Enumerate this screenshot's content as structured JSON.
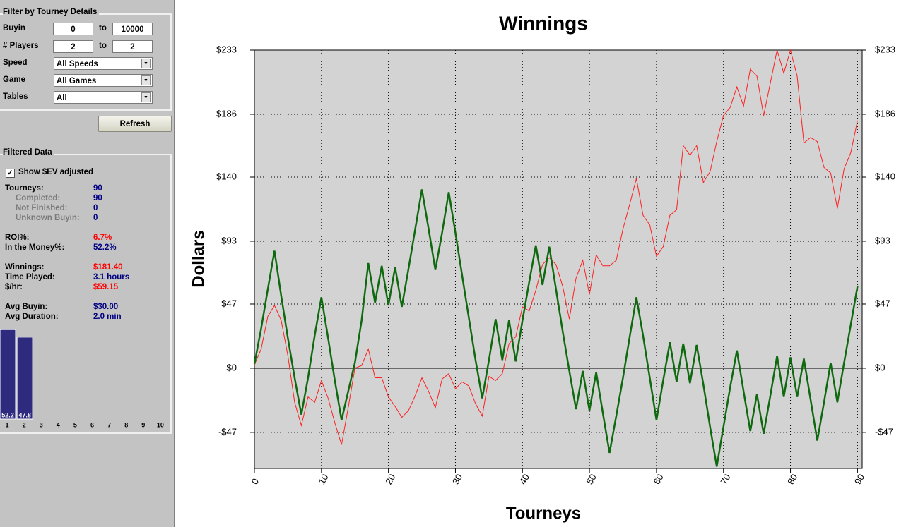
{
  "panel": {
    "filter_title": "Filter by Tourney Details",
    "range_filters": [
      {
        "label": "Buyin",
        "min": "0",
        "sep": "to",
        "max": "10000"
      },
      {
        "label": "# Players",
        "min": "2",
        "sep": "to",
        "max": "2"
      }
    ],
    "dropdown_filters": [
      {
        "label": "Speed",
        "value": "All Speeds"
      },
      {
        "label": "Game",
        "value": "All Games"
      },
      {
        "label": "Tables",
        "value": "All"
      }
    ],
    "refresh": "Refresh",
    "filtered_title": "Filtered Data",
    "checkbox": "Show $EV adjusted",
    "stat_groups": [
      [
        {
          "label": "Tourneys:",
          "value": "90",
          "items": [
            {
              "label": "Completed:",
              "value": "90"
            },
            {
              "label": "Not Finished:",
              "value": "0"
            },
            {
              "label": "Unknown Buyin:",
              "value": "0"
            }
          ]
        }
      ],
      [
        {
          "label": "ROI%:",
          "value": "6.7%",
          "color": "#ff0000"
        },
        {
          "label": "In the Money%:",
          "value": "52.2%"
        }
      ],
      [
        {
          "label": "Winnings:",
          "value": "$181.40",
          "color": "#ff0000"
        },
        {
          "label": "Time Played:",
          "value": "3.1 hours"
        },
        {
          "label": "$/hr:",
          "value": "$59.15",
          "color": "#ff0000"
        }
      ],
      [
        {
          "label": "Avg Buyin:",
          "value": "$30.00"
        },
        {
          "label": "Avg Duration:",
          "value": "2.0 min"
        }
      ]
    ],
    "distribution": {
      "type": "bar",
      "categories": [
        "1",
        "2",
        "3",
        "4",
        "5",
        "6",
        "7",
        "8",
        "9",
        "10"
      ],
      "values": [
        52.2,
        47.8,
        null,
        null,
        null,
        null,
        null,
        null,
        null,
        null
      ],
      "color": "#2e2b7e"
    }
  },
  "chart_data": {
    "type": "line",
    "title": "Winnings",
    "xlabel": "Tourneys",
    "ylabel": "Dollars",
    "x": [
      0,
      1,
      2,
      3,
      4,
      5,
      6,
      7,
      8,
      9,
      10,
      11,
      12,
      13,
      14,
      15,
      16,
      17,
      18,
      19,
      20,
      21,
      22,
      23,
      24,
      25,
      26,
      27,
      28,
      29,
      30,
      31,
      32,
      33,
      34,
      35,
      36,
      37,
      38,
      39,
      40,
      41,
      42,
      43,
      44,
      45,
      46,
      47,
      48,
      49,
      50,
      51,
      52,
      53,
      54,
      55,
      56,
      57,
      58,
      59,
      60,
      61,
      62,
      63,
      64,
      65,
      66,
      67,
      68,
      69,
      70,
      71,
      72,
      73,
      74,
      75,
      76,
      77,
      78,
      79,
      80,
      81,
      82,
      83,
      84,
      85,
      86,
      87,
      88,
      89,
      90
    ],
    "series": [
      {
        "color": "#ff2020",
        "width": 1,
        "values": [
          2.5,
          14,
          38,
          46,
          35,
          9,
          -25,
          -42,
          -21,
          -25,
          -9,
          -22,
          -40,
          -56,
          -29,
          0,
          2,
          14,
          -7,
          -7,
          -21,
          -28,
          -36,
          -31,
          -20,
          -7,
          -17,
          -29,
          -8,
          -4,
          -15,
          -10,
          -13,
          -26,
          -35,
          -6,
          -9,
          -4,
          18,
          23,
          45,
          42,
          57,
          76,
          81,
          76,
          60,
          36,
          66,
          79,
          54,
          83,
          75,
          75,
          79,
          102,
          120,
          139,
          112,
          105,
          82,
          89,
          112,
          116,
          163,
          156,
          163,
          136,
          144,
          166,
          185,
          191,
          206,
          192,
          219,
          214,
          185,
          209,
          233,
          216,
          233,
          214,
          165,
          169,
          166,
          147,
          143,
          117,
          146,
          158,
          181.4
        ]
      },
      {
        "color": "#0f6a0f",
        "width": 2.5,
        "values": [
          3,
          29,
          58,
          86,
          53,
          22,
          -7,
          -34,
          -7,
          24,
          52,
          22,
          -9,
          -38,
          -17,
          4,
          35,
          77,
          48,
          75,
          46,
          74,
          45,
          73,
          102,
          131,
          102,
          72,
          99,
          129,
          99,
          68,
          37,
          6,
          -22,
          6,
          36,
          6,
          35,
          5,
          35,
          63,
          90,
          61,
          89,
          58,
          27,
          -2,
          -30,
          -2,
          -31,
          -3,
          -33,
          -62,
          -35,
          -7,
          23,
          52,
          24,
          -7,
          -38,
          -9,
          19,
          -10,
          18,
          -11,
          17,
          -12,
          -43,
          -72,
          -43,
          -14,
          13,
          -17,
          -46,
          -19,
          -48,
          -20,
          9,
          -21,
          8,
          -21,
          7,
          -23,
          -53,
          -25,
          4,
          -25,
          4,
          32,
          60
        ]
      }
    ],
    "xlim": [
      0,
      90.7
    ],
    "ylim": [
      -73.4,
      233
    ],
    "xticks": [
      0,
      10,
      20,
      30,
      40,
      50,
      60,
      70,
      80,
      90
    ],
    "yticks": [
      {
        "value": 233,
        "label": "$233"
      },
      {
        "value": 186,
        "label": "$186"
      },
      {
        "value": 140,
        "label": "$140"
      },
      {
        "value": 93,
        "label": "$93"
      },
      {
        "value": 47,
        "label": "$47"
      },
      {
        "value": 0,
        "label": "$0"
      },
      {
        "value": -47,
        "label": "-$47"
      }
    ],
    "grid": true
  }
}
